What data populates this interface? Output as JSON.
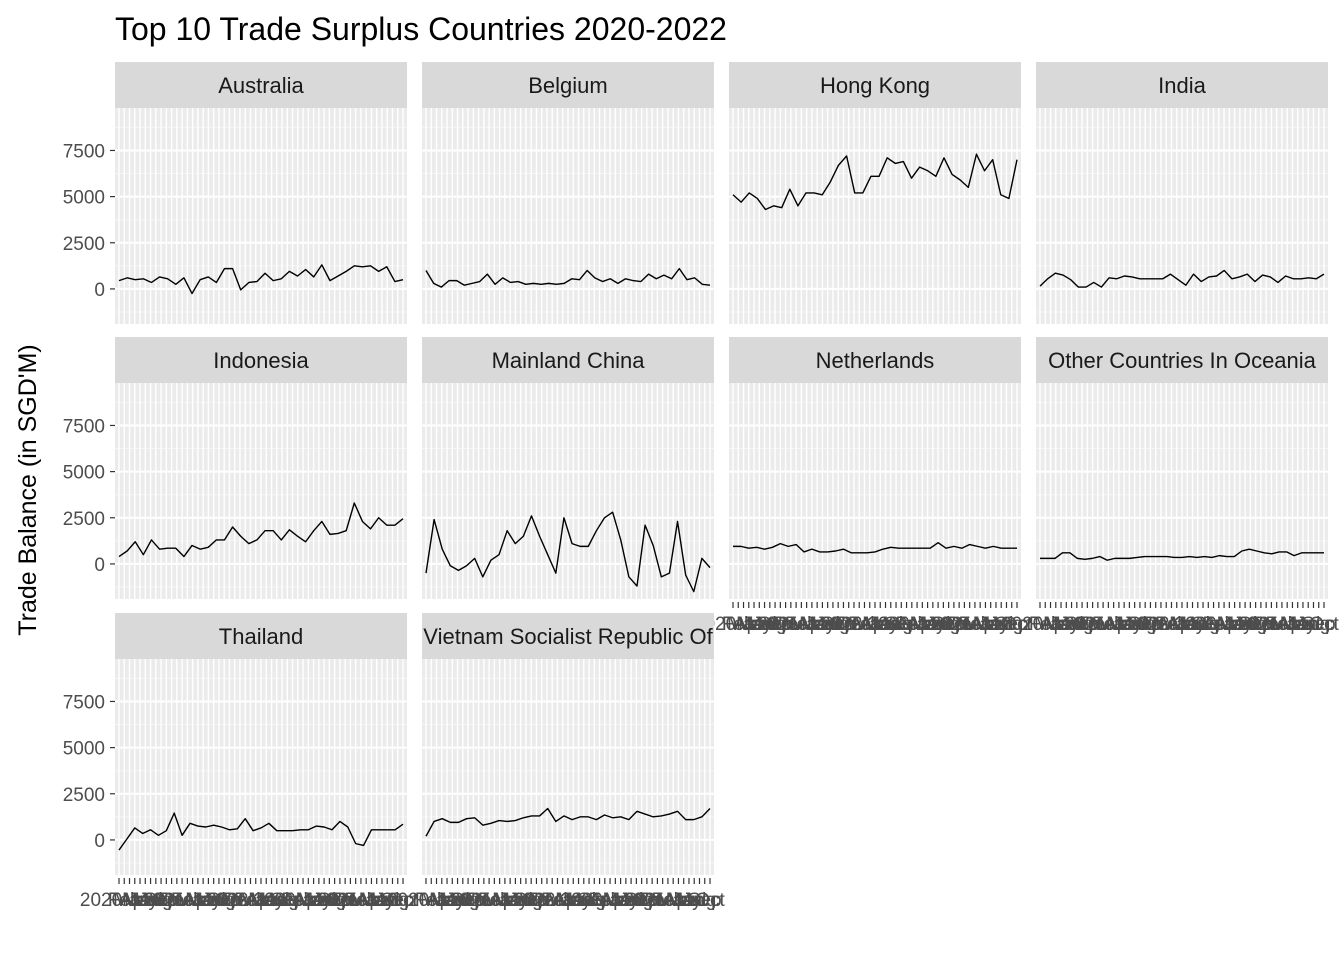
{
  "chart_data": {
    "type": "line",
    "title": "Top 10 Trade Surplus Countries 2020-2022",
    "xlabel": "",
    "ylabel": "Trade Balance (in SGD'M)",
    "ylim": [
      -1900,
      9800
    ],
    "yticks": [
      0,
      2500,
      5000,
      7500
    ],
    "grid": true,
    "panel_background": "#ebebeb",
    "strip_background": "#d9d9d9",
    "line_color": "#000000",
    "x_tick_label_pattern": [
      "2020 Jan",
      "Feb",
      "Mar",
      "Apr",
      "May",
      "Jun",
      "Jul",
      "Aug",
      "Sep",
      "Oct",
      "Nov",
      "Dec",
      "2021 Jan",
      "Feb",
      "Mar",
      "Apr",
      "May",
      "Jun",
      "Jul",
      "Aug",
      "Sep",
      "Oct",
      "Nov",
      "Dec",
      "2022 Jan",
      "Feb",
      "Mar",
      "Apr",
      "May",
      "Jun",
      "Jul",
      "Aug",
      "Sep"
    ],
    "panels": [
      {
        "name": "Australia",
        "values": [
          450,
          600,
          500,
          550,
          350,
          650,
          550,
          250,
          600,
          -250,
          500,
          650,
          350,
          1100,
          1100,
          -50,
          350,
          400,
          850,
          450,
          550,
          950,
          700,
          1050,
          650,
          1300,
          450,
          700,
          950,
          1250,
          1200,
          1250,
          950,
          1200,
          400,
          500
        ]
      },
      {
        "name": "Belgium",
        "values": [
          1000,
          300,
          100,
          450,
          450,
          200,
          300,
          400,
          800,
          250,
          600,
          350,
          400,
          250,
          300,
          250,
          300,
          250,
          300,
          550,
          500,
          1000,
          600,
          400,
          550,
          300,
          550,
          450,
          400,
          800,
          550,
          750,
          550,
          1100,
          500,
          600,
          250,
          200
        ]
      },
      {
        "name": "Hong Kong",
        "values": [
          5100,
          4700,
          5200,
          4900,
          4300,
          4500,
          4400,
          5400,
          4500,
          5200,
          5200,
          5100,
          5800,
          6700,
          7200,
          5200,
          5200,
          6100,
          6100,
          7100,
          6800,
          6900,
          6000,
          6600,
          6400,
          6100,
          7100,
          6200,
          5900,
          5500,
          7300,
          6400,
          7000,
          5100,
          4900,
          7000
        ]
      },
      {
        "name": "India",
        "values": [
          150,
          550,
          850,
          750,
          500,
          100,
          100,
          350,
          100,
          600,
          550,
          700,
          650,
          550,
          550,
          550,
          550,
          800,
          500,
          200,
          800,
          400,
          650,
          700,
          1000,
          550,
          650,
          800,
          400,
          750,
          650,
          350,
          700,
          550,
          550,
          600,
          550,
          800
        ]
      },
      {
        "name": "Indonesia",
        "values": [
          400,
          700,
          1200,
          500,
          1300,
          800,
          850,
          850,
          400,
          1000,
          800,
          900,
          1300,
          1300,
          2000,
          1500,
          1100,
          1300,
          1800,
          1800,
          1300,
          1850,
          1500,
          1200,
          1800,
          2300,
          1600,
          1650,
          1800,
          3300,
          2300,
          1900,
          2500,
          2100,
          2100,
          2450
        ]
      },
      {
        "name": "Mainland China",
        "values": [
          -500,
          2400,
          800,
          -100,
          -350,
          -100,
          300,
          -700,
          200,
          500,
          1800,
          1100,
          1500,
          2600,
          1500,
          500,
          -500,
          2500,
          1100,
          950,
          950,
          1800,
          2500,
          2800,
          1300,
          -700,
          -1200,
          2100,
          1000,
          -700,
          -500,
          2300,
          -600,
          -1500,
          300,
          -200
        ]
      },
      {
        "name": "Netherlands",
        "values": [
          950,
          950,
          850,
          900,
          800,
          900,
          1100,
          950,
          1050,
          650,
          800,
          650,
          650,
          700,
          800,
          600,
          600,
          600,
          650,
          800,
          900,
          850,
          850,
          850,
          850,
          850,
          1150,
          850,
          950,
          850,
          1050,
          950,
          850,
          950,
          850,
          850,
          850
        ]
      },
      {
        "name": "Other Countries In Oceania",
        "values": [
          300,
          300,
          300,
          600,
          600,
          300,
          250,
          300,
          400,
          200,
          300,
          300,
          300,
          350,
          400,
          400,
          400,
          400,
          350,
          350,
          400,
          350,
          400,
          350,
          450,
          400,
          400,
          700,
          800,
          700,
          600,
          550,
          650,
          650,
          450,
          600,
          600,
          600,
          600
        ]
      },
      {
        "name": "Thailand",
        "values": [
          -550,
          50,
          650,
          350,
          550,
          250,
          500,
          1450,
          250,
          900,
          750,
          700,
          800,
          700,
          550,
          600,
          1150,
          500,
          650,
          900,
          500,
          500,
          500,
          550,
          550,
          750,
          700,
          550,
          1000,
          700,
          -200,
          -300,
          550,
          550,
          550,
          550,
          850
        ]
      },
      {
        "name": "Vietnam Socialist Republic Of",
        "values": [
          200,
          1000,
          1150,
          950,
          950,
          1150,
          1200,
          800,
          900,
          1050,
          1000,
          1050,
          1200,
          1300,
          1300,
          1700,
          1000,
          1300,
          1100,
          1250,
          1250,
          1100,
          1350,
          1200,
          1250,
          1100,
          1550,
          1400,
          1250,
          1300,
          1400,
          1550,
          1100,
          1100,
          1250,
          1700
        ]
      }
    ]
  }
}
